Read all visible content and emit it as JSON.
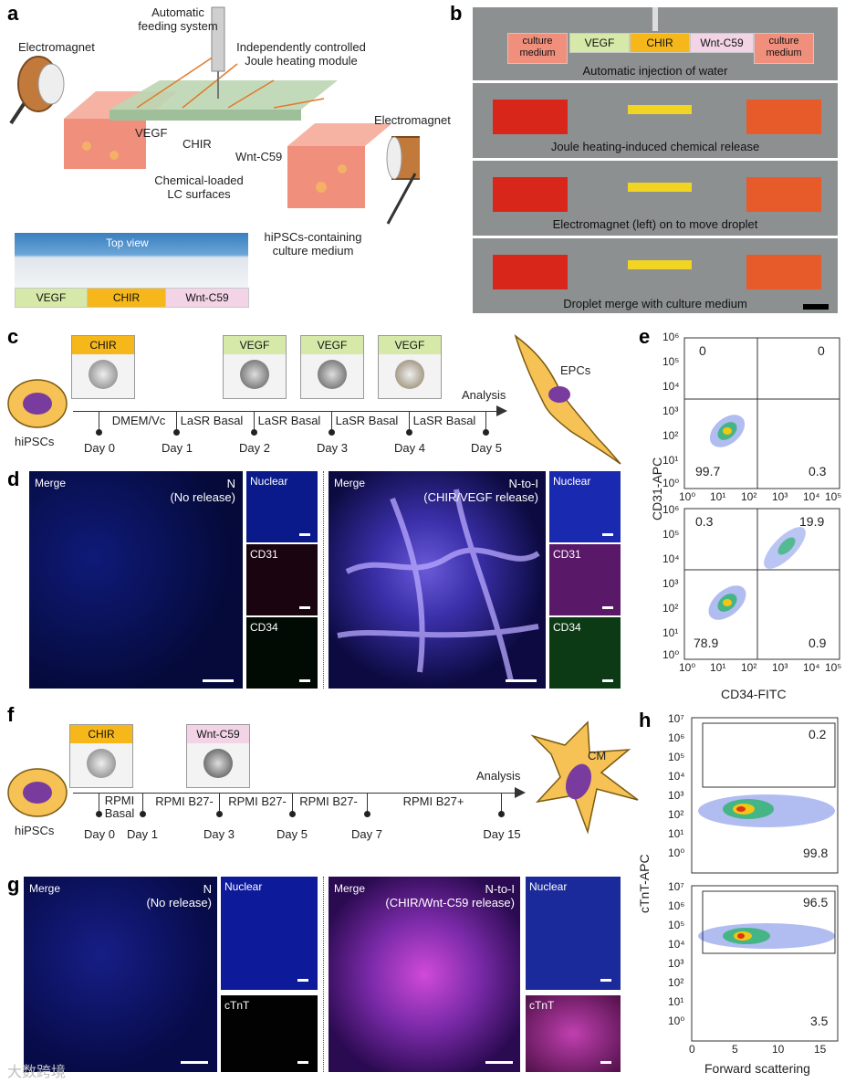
{
  "panels": {
    "a": "a",
    "b": "b",
    "c": "c",
    "d": "d",
    "e": "e",
    "f": "f",
    "g": "g",
    "h": "h"
  },
  "panel_a": {
    "feeding": "Automatic\nfeeding system",
    "joule": "Independently controlled\nJoule heating module",
    "electromagnet_left": "Electromagnet",
    "electromagnet_right": "Electromagnet",
    "vegf": "VEGF",
    "chir": "CHIR",
    "wnt": "Wnt-C59",
    "lc_surfaces": "Chemical-loaded\nLC surfaces",
    "hipsc_medium": "hiPSCs-containing\nculture medium",
    "top_view": "Top view",
    "strip": [
      "VEGF",
      "CHIR",
      "Wnt-C59"
    ]
  },
  "panel_b": {
    "top_labels": [
      "culture\nmedium",
      "VEGF",
      "CHIR",
      "Wnt-C59",
      "culture\nmedium"
    ],
    "captions": [
      "Automatic injection of water",
      "Joule heating-induced chemical release",
      "Electromagnet (left) on to move droplet",
      "Droplet merge with culture medium"
    ]
  },
  "panel_c": {
    "cell_label": "hiPSCs",
    "thumbs": [
      "CHIR",
      "VEGF",
      "VEGF",
      "VEGF"
    ],
    "media": [
      "DMEM/Vc",
      "LaSR Basal",
      "LaSR Basal",
      "LaSR Basal",
      "LaSR Basal"
    ],
    "days": [
      "Day 0",
      "Day 1",
      "Day 2",
      "Day 3",
      "Day 4",
      "Day 5"
    ],
    "analysis": "Analysis",
    "result": "EPCs"
  },
  "panel_d": {
    "left_merge": "Merge",
    "left_title": "N\n(No release)",
    "right_merge": "Merge",
    "right_title": "N-to-I\n(CHIR/VEGF  release)",
    "channels": [
      "Nuclear",
      "CD31",
      "CD34"
    ]
  },
  "panel_e": {
    "ylabel": "CD31-APC",
    "xlabel": "CD34-FITC",
    "tick_labels": [
      "10⁰",
      "10¹",
      "10²",
      "10³",
      "10⁴",
      "10⁵",
      "10⁶"
    ],
    "top_quadrants": [
      "0",
      "0",
      "99.7",
      "0.3"
    ],
    "bottom_quadrants": [
      "0.3",
      "19.9",
      "78.9",
      "0.9"
    ]
  },
  "panel_f": {
    "cell_label": "hiPSCs",
    "thumbs": [
      "CHIR",
      "Wnt-C59"
    ],
    "media": [
      "RPMI\nBasal",
      "RPMI B27-",
      "RPMI B27-",
      "RPMI B27-",
      "RPMI B27+"
    ],
    "days": [
      "Day 0",
      "Day 1",
      "Day 3",
      "Day 5",
      "Day 7",
      "Day 15"
    ],
    "analysis": "Analysis",
    "result": "CM"
  },
  "panel_g": {
    "left_merge": "Merge",
    "left_title": "N\n(No release)",
    "right_merge": "Merge",
    "right_title": "N-to-I\n(CHIR/Wnt-C59 release)",
    "channels": [
      "Nuclear",
      "cTnT"
    ]
  },
  "panel_h": {
    "ylabel": "cTnT-APC",
    "xlabel": "Forward scattering",
    "y_ticks": [
      "10⁰",
      "10¹",
      "10²",
      "10³",
      "10⁴",
      "10⁵",
      "10⁶",
      "10⁷"
    ],
    "x_ticks": [
      "0",
      "5",
      "10",
      "15"
    ],
    "top_values": [
      "0.2",
      "99.8"
    ],
    "bottom_values": [
      "96.5",
      "3.5"
    ]
  },
  "watermark": "大数跨境",
  "colors": {
    "vegf": "#d6e9a8",
    "chir": "#f5b71a",
    "wnt": "#f2d4e6",
    "medium": "#f3a18f",
    "cell": "#f6c155",
    "nucleus": "#7a3b9e"
  }
}
